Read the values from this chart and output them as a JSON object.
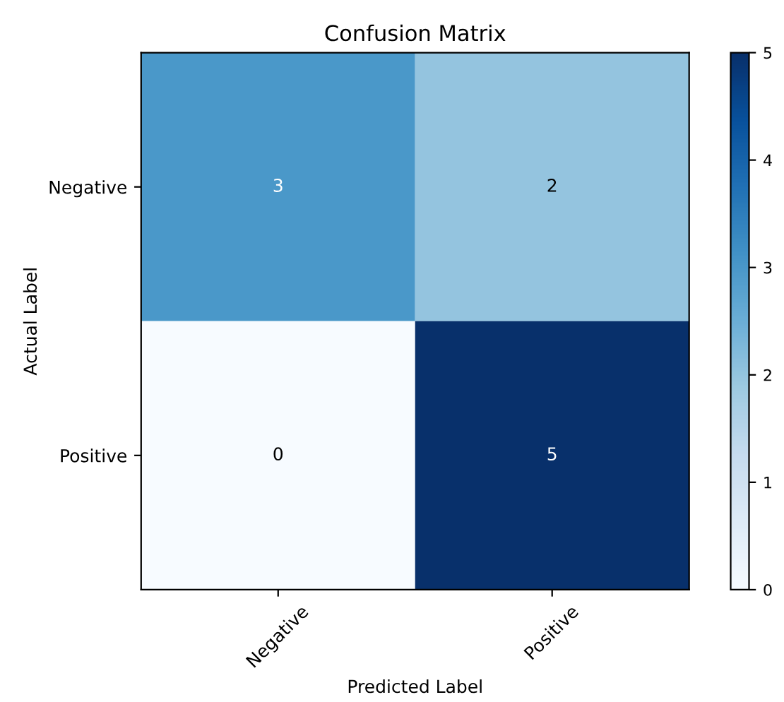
{
  "chart_data": {
    "type": "heatmap",
    "title": "Confusion Matrix",
    "xlabel": "Predicted Label",
    "ylabel": "Actual Label",
    "categories": [
      "Negative",
      "Positive"
    ],
    "y_categories": [
      "Negative",
      "Positive"
    ],
    "cells": [
      [
        3,
        2
      ],
      [
        0,
        5
      ]
    ],
    "clim": [
      0,
      5
    ],
    "cticks": [
      0,
      1,
      2,
      3,
      4,
      5
    ],
    "data_labels": true
  }
}
